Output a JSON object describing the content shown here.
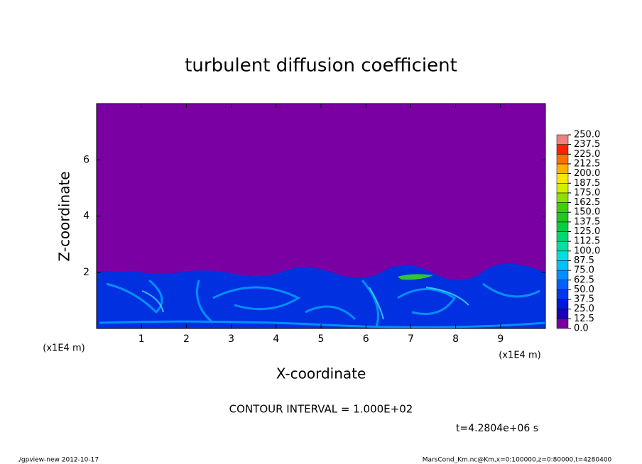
{
  "chart_data": {
    "type": "contour",
    "title": "turbulent diffusion coefficient",
    "x_label": "X-coordinate",
    "y_label": "Z-coordinate",
    "x_unit_label": "(x1E4 m)",
    "x_unit_label_right": "(x1E4 m)",
    "xlim": [
      0,
      10
    ],
    "ylim": [
      0,
      8
    ],
    "xticks": [
      1,
      2,
      3,
      4,
      5,
      6,
      7,
      8,
      9
    ],
    "yticks": [
      2,
      4,
      6
    ],
    "annotation": "CONTOUR INTERVAL = 1.000E+02",
    "time_label": "t=4.2804e+06 s",
    "footer_left": "./gpview-new  2012-10-17",
    "footer_right": "MarsCond_Km.nc@Km,x=0:100000,z=0:80000,t=4280400",
    "colorbar": {
      "levels": [
        {
          "value": 0,
          "label": "0.0"
        },
        12.5,
        {
          "value": 25,
          "label": "25.0"
        },
        37.5,
        {
          "value": 50,
          "label": "50.0"
        },
        62.5,
        {
          "value": 75,
          "label": "75.0"
        },
        87.5,
        {
          "value": 100,
          "label": "100.0"
        },
        112.5,
        {
          "value": 125,
          "label": "125.0"
        },
        137.5,
        {
          "value": 150,
          "label": "150.0"
        },
        162.5,
        {
          "value": 175,
          "label": "175.0"
        },
        187.5,
        {
          "value": 200,
          "label": "200.0"
        },
        212.5,
        {
          "value": 225,
          "label": "225.0"
        },
        237.5,
        {
          "value": 250,
          "label": "250.0"
        }
      ],
      "colors": [
        "#7800a0",
        "#1a00b8",
        "#0018d8",
        "#0038f0",
        "#0060ff",
        "#0090ff",
        "#00c0ff",
        "#00e0e0",
        "#00e0a0",
        "#00d870",
        "#00d040",
        "#20c820",
        "#40d000",
        "#90e000",
        "#d0f000",
        "#f8e800",
        "#ffb000",
        "#ff7000",
        "#ff2000",
        "#f08080"
      ]
    }
  }
}
